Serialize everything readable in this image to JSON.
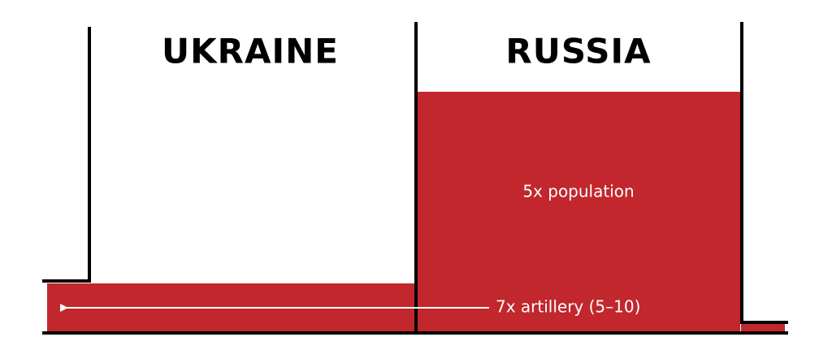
{
  "headers": {
    "left": "UKRAINE",
    "right": "RUSSIA"
  },
  "labels": {
    "population": "5x population",
    "artillery": "7x artillery (5–10)"
  }
}
